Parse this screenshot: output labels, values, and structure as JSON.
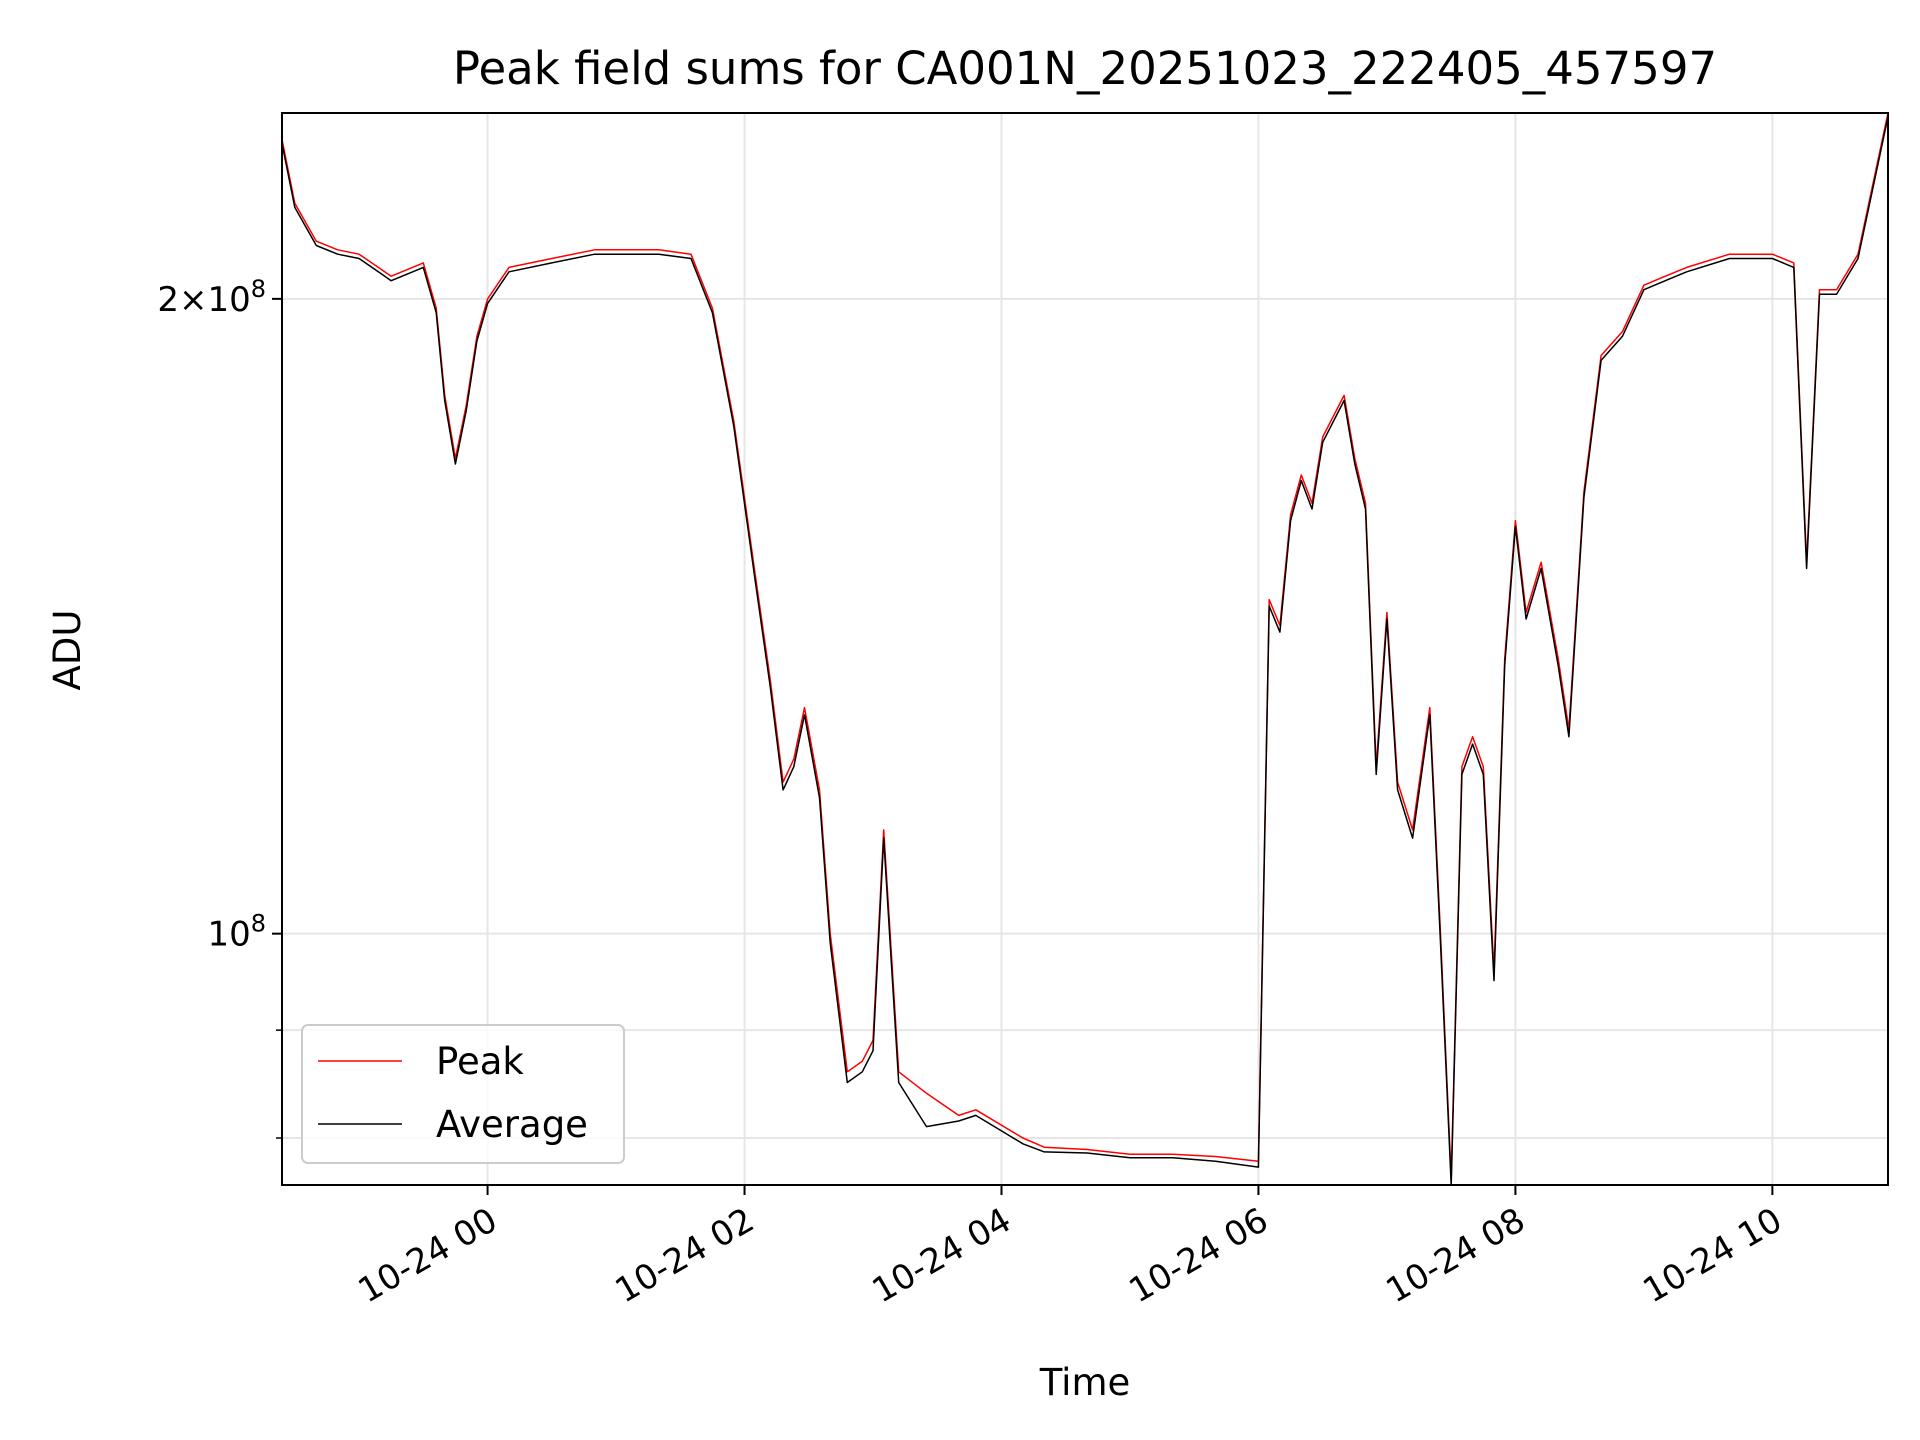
{
  "chart_data": {
    "type": "line",
    "title": "Peak field sums for CA001N_20251023_222405_457597",
    "xlabel": "Time",
    "ylabel": "ADU",
    "x_ticks": [
      "10-24 00",
      "10-24 02",
      "10-24 04",
      "10-24 06",
      "10-24 08",
      "10-24 10"
    ],
    "y_ticks": [
      {
        "label": "10",
        "exp": "8",
        "value": 100000000
      },
      {
        "label": "2×10",
        "exp": "8",
        "value": 200000000
      }
    ],
    "y_scale": "log",
    "ylim": [
      76000000,
      245000000
    ],
    "xlim": [
      "2025-10-23 22:24",
      "2025-10-24 10:54"
    ],
    "grid": true,
    "legend_position": "lower-left",
    "colors": {
      "peak": "#ff0000",
      "average": "#000000"
    },
    "series": [
      {
        "name": "Peak",
        "x": [
          "2025-10-23 22:24",
          "2025-10-23 22:30",
          "2025-10-23 22:40",
          "2025-10-23 22:50",
          "2025-10-23 23:00",
          "2025-10-23 23:15",
          "2025-10-23 23:30",
          "2025-10-23 23:36",
          "2025-10-23 23:40",
          "2025-10-23 23:45",
          "2025-10-23 23:50",
          "2025-10-23 23:55",
          "2025-10-24 00:00",
          "2025-10-24 00:10",
          "2025-10-24 00:30",
          "2025-10-24 00:50",
          "2025-10-24 01:00",
          "2025-10-24 01:20",
          "2025-10-24 01:35",
          "2025-10-24 01:45",
          "2025-10-24 01:55",
          "2025-10-24 02:05",
          "2025-10-24 02:12",
          "2025-10-24 02:18",
          "2025-10-24 02:23",
          "2025-10-24 02:28",
          "2025-10-24 02:35",
          "2025-10-24 02:40",
          "2025-10-24 02:48",
          "2025-10-24 02:55",
          "2025-10-24 03:00",
          "2025-10-24 03:05",
          "2025-10-24 03:12",
          "2025-10-24 03:25",
          "2025-10-24 03:40",
          "2025-10-24 03:48",
          "2025-10-24 04:10",
          "2025-10-24 04:20",
          "2025-10-24 04:40",
          "2025-10-24 05:00",
          "2025-10-24 05:20",
          "2025-10-24 05:40",
          "2025-10-24 06:00",
          "2025-10-24 06:05",
          "2025-10-24 06:10",
          "2025-10-24 06:15",
          "2025-10-24 06:20",
          "2025-10-24 06:25",
          "2025-10-24 06:30",
          "2025-10-24 06:40",
          "2025-10-24 06:45",
          "2025-10-24 06:50",
          "2025-10-24 06:55",
          "2025-10-24 07:00",
          "2025-10-24 07:05",
          "2025-10-24 07:12",
          "2025-10-24 07:20",
          "2025-10-24 07:25",
          "2025-10-24 07:30",
          "2025-10-24 07:35",
          "2025-10-24 07:40",
          "2025-10-24 07:45",
          "2025-10-24 07:50",
          "2025-10-24 07:55",
          "2025-10-24 08:00",
          "2025-10-24 08:05",
          "2025-10-24 08:12",
          "2025-10-24 08:20",
          "2025-10-24 08:25",
          "2025-10-24 08:32",
          "2025-10-24 08:40",
          "2025-10-24 08:50",
          "2025-10-24 09:00",
          "2025-10-24 09:10",
          "2025-10-24 09:20",
          "2025-10-24 09:40",
          "2025-10-24 10:00",
          "2025-10-24 10:10",
          "2025-10-24 10:16",
          "2025-10-24 10:22",
          "2025-10-24 10:30",
          "2025-10-24 10:40",
          "2025-10-24 10:54"
        ],
        "values": [
          238000000,
          222000000,
          213000000,
          211000000,
          210000000,
          205000000,
          208000000,
          198000000,
          180000000,
          168000000,
          178000000,
          192000000,
          200000000,
          207000000,
          209000000,
          211000000,
          211000000,
          211000000,
          210000000,
          198000000,
          175000000,
          148000000,
          132000000,
          118000000,
          121000000,
          128000000,
          117000000,
          100000000,
          86000000,
          87000000,
          89000000,
          112000000,
          86000000,
          84000000,
          82000000,
          82500000,
          80000000,
          79200000,
          79000000,
          78600000,
          78600000,
          78400000,
          78000000,
          144000000,
          140000000,
          158000000,
          165000000,
          160000000,
          172000000,
          180000000,
          168000000,
          160000000,
          120000000,
          142000000,
          118000000,
          112000000,
          128000000,
          100000000,
          76500000,
          120000000,
          124000000,
          120000000,
          96000000,
          135000000,
          157000000,
          142000000,
          150000000,
          135000000,
          125000000,
          162000000,
          188000000,
          193000000,
          203000000,
          205000000,
          207000000,
          210000000,
          210000000,
          208000000,
          150000000,
          202000000,
          202000000,
          210000000,
          245000000
        ]
      },
      {
        "name": "Average",
        "x": [
          "2025-10-23 22:24",
          "2025-10-23 22:30",
          "2025-10-23 22:40",
          "2025-10-23 22:50",
          "2025-10-23 23:00",
          "2025-10-23 23:15",
          "2025-10-23 23:30",
          "2025-10-23 23:36",
          "2025-10-23 23:40",
          "2025-10-23 23:45",
          "2025-10-23 23:50",
          "2025-10-23 23:55",
          "2025-10-24 00:00",
          "2025-10-24 00:10",
          "2025-10-24 00:30",
          "2025-10-24 00:50",
          "2025-10-24 01:00",
          "2025-10-24 01:20",
          "2025-10-24 01:35",
          "2025-10-24 01:45",
          "2025-10-24 01:55",
          "2025-10-24 02:05",
          "2025-10-24 02:12",
          "2025-10-24 02:18",
          "2025-10-24 02:23",
          "2025-10-24 02:28",
          "2025-10-24 02:35",
          "2025-10-24 02:40",
          "2025-10-24 02:48",
          "2025-10-24 02:55",
          "2025-10-24 03:00",
          "2025-10-24 03:05",
          "2025-10-24 03:12",
          "2025-10-24 03:25",
          "2025-10-24 03:40",
          "2025-10-24 03:48",
          "2025-10-24 04:10",
          "2025-10-24 04:20",
          "2025-10-24 04:40",
          "2025-10-24 05:00",
          "2025-10-24 05:20",
          "2025-10-24 05:40",
          "2025-10-24 06:00",
          "2025-10-24 06:05",
          "2025-10-24 06:10",
          "2025-10-24 06:15",
          "2025-10-24 06:20",
          "2025-10-24 06:25",
          "2025-10-24 06:30",
          "2025-10-24 06:40",
          "2025-10-24 06:45",
          "2025-10-24 06:50",
          "2025-10-24 06:55",
          "2025-10-24 07:00",
          "2025-10-24 07:05",
          "2025-10-24 07:12",
          "2025-10-24 07:20",
          "2025-10-24 07:25",
          "2025-10-24 07:30",
          "2025-10-24 07:35",
          "2025-10-24 07:40",
          "2025-10-24 07:45",
          "2025-10-24 07:50",
          "2025-10-24 07:55",
          "2025-10-24 08:00",
          "2025-10-24 08:05",
          "2025-10-24 08:12",
          "2025-10-24 08:20",
          "2025-10-24 08:25",
          "2025-10-24 08:32",
          "2025-10-24 08:40",
          "2025-10-24 08:50",
          "2025-10-24 09:00",
          "2025-10-24 09:10",
          "2025-10-24 09:20",
          "2025-10-24 09:40",
          "2025-10-24 10:00",
          "2025-10-24 10:10",
          "2025-10-24 10:16",
          "2025-10-24 10:22",
          "2025-10-24 10:30",
          "2025-10-24 10:40",
          "2025-10-24 10:54"
        ],
        "values": [
          237000000,
          221000000,
          212000000,
          210000000,
          209000000,
          204000000,
          207000000,
          197000000,
          179000000,
          167000000,
          177000000,
          191000000,
          199000000,
          206000000,
          208000000,
          210000000,
          210000000,
          210000000,
          209000000,
          197000000,
          174000000,
          147000000,
          131000000,
          117000000,
          120000000,
          127000000,
          116000000,
          99000000,
          85000000,
          86000000,
          88000000,
          111000000,
          85000000,
          81000000,
          81500000,
          82000000,
          79500000,
          78800000,
          78700000,
          78300000,
          78300000,
          78000000,
          77500000,
          143000000,
          139000000,
          157000000,
          164000000,
          159000000,
          171000000,
          179000000,
          167000000,
          159000000,
          119000000,
          141000000,
          117000000,
          111000000,
          127000000,
          99000000,
          76000000,
          119000000,
          123000000,
          119000000,
          95000000,
          134000000,
          156000000,
          141000000,
          149000000,
          134000000,
          124000000,
          161000000,
          187000000,
          192000000,
          202000000,
          204000000,
          206000000,
          209000000,
          209000000,
          207000000,
          149000000,
          201000000,
          201000000,
          209000000,
          244000000
        ]
      }
    ]
  }
}
